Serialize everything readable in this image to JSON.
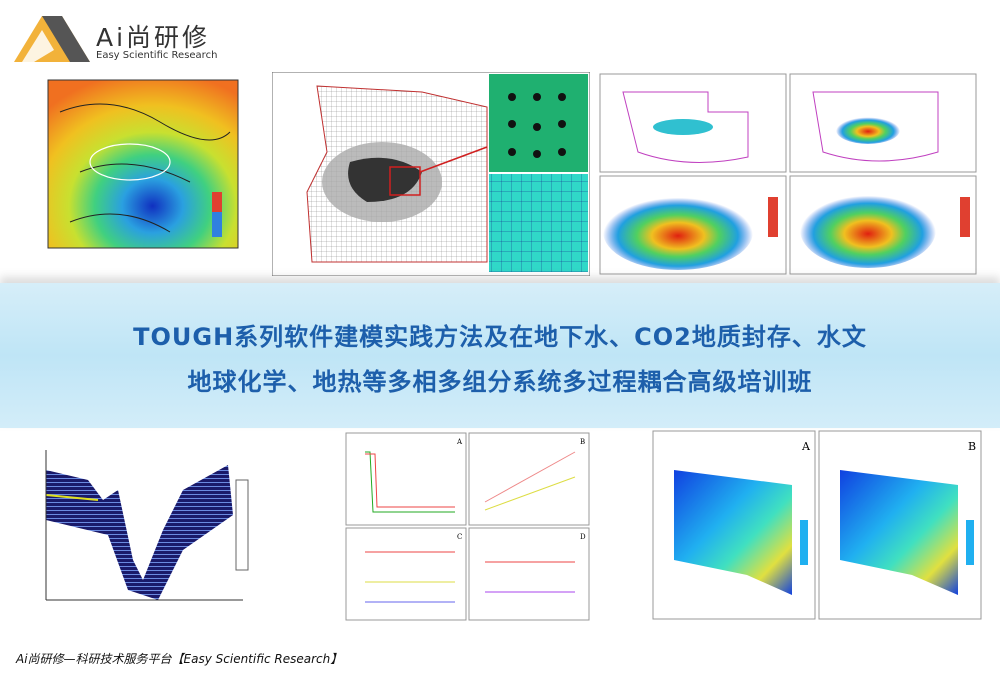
{
  "header": {
    "logo_title": "Ai尚研修",
    "logo_subtitle": "Easy Scientific Research"
  },
  "banner": {
    "title_lines": [
      "TOUGH系列软件建模实践方法及在地下水、CO2地质封存、水文",
      "地球化学、地热等多相多组分系统多过程耦合高级培训班"
    ]
  },
  "figures": {
    "plot_labels": [
      "A",
      "B",
      "C",
      "D"
    ],
    "section_labels": [
      "A",
      "B"
    ]
  },
  "footer": {
    "text": "Ai尚研修—科研技术服务平台【Easy Scientific Research】"
  }
}
